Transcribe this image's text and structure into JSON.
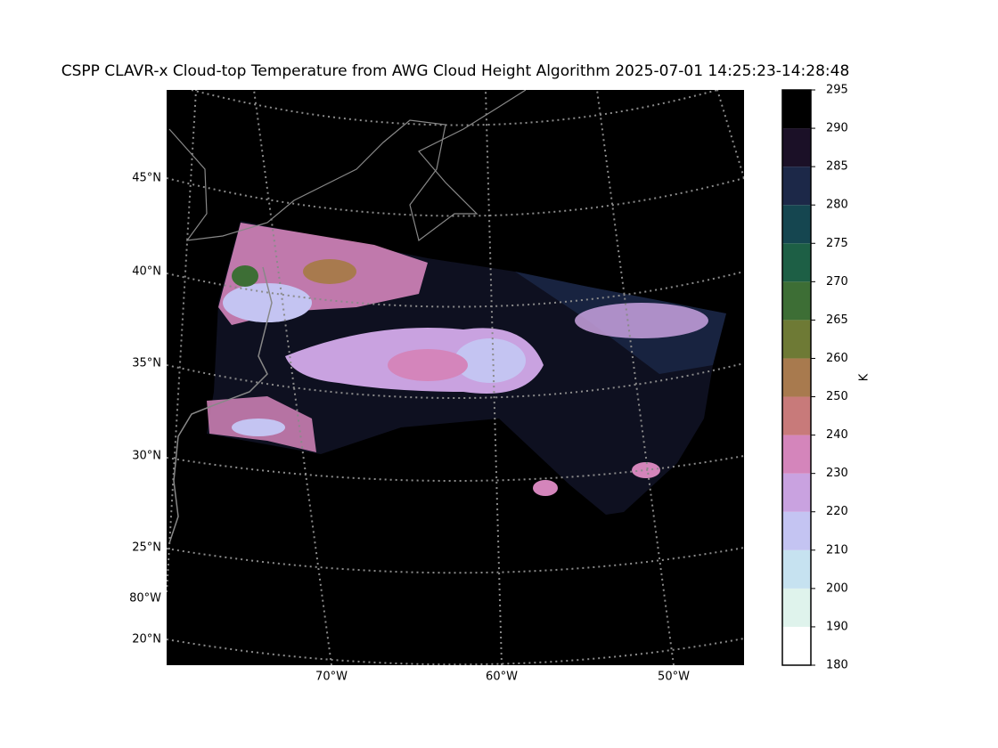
{
  "title": "CSPP CLAVR-x Cloud-top Temperature from AWG Cloud Height Algorithm 2025-07-01 14:25:23-14:28:48",
  "map": {
    "latitude_labels": [
      "45°N",
      "40°N",
      "35°N",
      "30°N",
      "25°N",
      "20°N"
    ],
    "longitude_labels": [
      "80°W",
      "70°W",
      "60°W",
      "50°W"
    ]
  },
  "colorbar": {
    "label": "K",
    "ticks": [
      180,
      190,
      200,
      210,
      220,
      230,
      240,
      250,
      260,
      265,
      270,
      275,
      280,
      285,
      290,
      295
    ],
    "colors": [
      "#ffffff",
      "#dff3ec",
      "#c6e2f0",
      "#c4c4f2",
      "#c9a2e0",
      "#d485bb",
      "#c87a7a",
      "#a87a4e",
      "#6e7a35",
      "#3d6e35",
      "#1d5f45",
      "#154650",
      "#1c2848",
      "#1b1027",
      "#000000"
    ]
  }
}
